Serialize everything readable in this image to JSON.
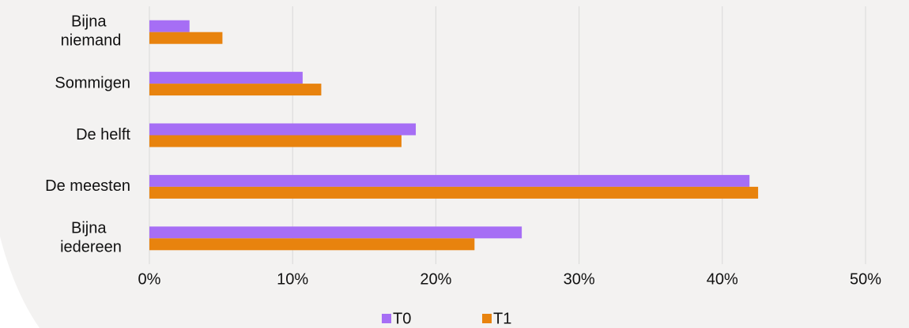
{
  "chart_data": {
    "type": "barh",
    "categories": [
      "Bijna niemand",
      "Sommigen",
      "De helft",
      "De meesten",
      "Bijna iedereen"
    ],
    "series": [
      {
        "name": "T0",
        "color": "#a66ef5",
        "values": [
          2.8,
          10.7,
          18.6,
          41.9,
          26.0
        ]
      },
      {
        "name": "T1",
        "color": "#e8830e",
        "values": [
          5.1,
          12.0,
          17.6,
          42.5,
          22.7
        ]
      }
    ],
    "xlim": [
      0,
      50
    ],
    "xticks": [
      {
        "value": 0,
        "label": "0%"
      },
      {
        "value": 10,
        "label": "10%"
      },
      {
        "value": 20,
        "label": "20%"
      },
      {
        "value": 30,
        "label": "30%"
      },
      {
        "value": 40,
        "label": "40%"
      },
      {
        "value": 50,
        "label": "50%"
      }
    ],
    "grid": true,
    "legend": "bottom"
  }
}
